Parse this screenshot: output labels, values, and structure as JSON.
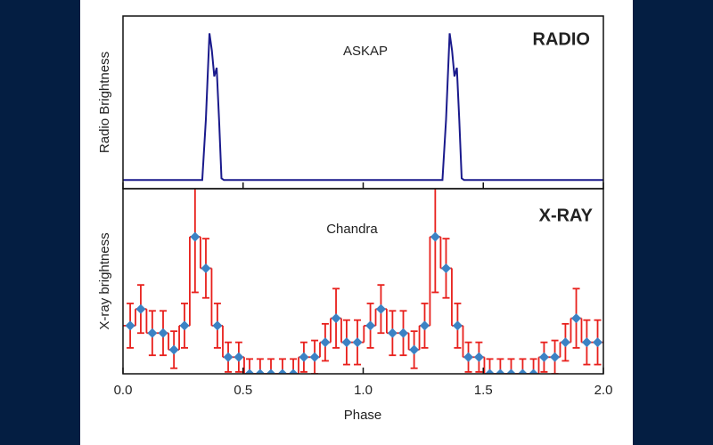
{
  "chart_data": [
    {
      "type": "line",
      "title": "RADIO",
      "annotation": "ASKAP",
      "ylabel": "Radio Brightness",
      "xlim": [
        0,
        2
      ],
      "ylim": [
        0,
        1
      ],
      "color": "#1a1a8c",
      "x": [
        0,
        0.33,
        0.345,
        0.36,
        0.37,
        0.38,
        0.39,
        0.4,
        0.41,
        0.42,
        1.33,
        1.345,
        1.36,
        1.37,
        1.38,
        1.39,
        1.4,
        1.41,
        1.42,
        2.0
      ],
      "values": [
        0.05,
        0.05,
        0.4,
        0.9,
        0.8,
        0.65,
        0.7,
        0.4,
        0.06,
        0.05,
        0.05,
        0.4,
        0.9,
        0.8,
        0.65,
        0.7,
        0.4,
        0.06,
        0.05,
        0.05
      ]
    },
    {
      "type": "errorbar",
      "title": "X-RAY",
      "annotation": "Chandra",
      "ylabel": "X-ray brightness",
      "xlabel": "Phase",
      "xlim": [
        0,
        2
      ],
      "ylim": [
        0,
        1
      ],
      "color": "#e8201c",
      "marker_color": "#3b82c4",
      "xticks": [
        {
          "value": 0,
          "label": "0.0"
        },
        0.5,
        {
          "value": 1,
          "label": "1.0"
        },
        1.5,
        {
          "value": 2,
          "label": "2.0"
        }
      ],
      "x": [
        0.03,
        0.074,
        0.122,
        0.167,
        0.212,
        0.256,
        0.3,
        0.345,
        0.393,
        0.438,
        0.482,
        0.527,
        0.571,
        0.616,
        0.664,
        0.709,
        0.753,
        0.798,
        0.842,
        0.887,
        0.931,
        0.976,
        1.03,
        1.074,
        1.122,
        1.167,
        1.212,
        1.256,
        1.3,
        1.345,
        1.393,
        1.438,
        1.482,
        1.527,
        1.571,
        1.616,
        1.664,
        1.709,
        1.753,
        1.798,
        1.842,
        1.887,
        1.931,
        1.976
      ],
      "values": [
        0.26,
        0.35,
        0.22,
        0.22,
        0.13,
        0.26,
        0.74,
        0.57,
        0.26,
        0.09,
        0.09,
        0,
        0,
        0,
        0,
        0,
        0.09,
        0.09,
        0.17,
        0.3,
        0.17,
        0.17,
        0.26,
        0.35,
        0.22,
        0.22,
        0.13,
        0.26,
        0.74,
        0.57,
        0.26,
        0.09,
        0.09,
        0,
        0,
        0,
        0,
        0,
        0.09,
        0.09,
        0.17,
        0.3,
        0.17,
        0.17
      ],
      "errors": [
        0.12,
        0.13,
        0.12,
        0.12,
        0.1,
        0.12,
        0.3,
        0.16,
        0.12,
        0.08,
        0.08,
        0.08,
        0.08,
        0.08,
        0.08,
        0.08,
        0.08,
        0.09,
        0.1,
        0.16,
        0.12,
        0.12,
        0.12,
        0.13,
        0.12,
        0.12,
        0.1,
        0.12,
        0.3,
        0.16,
        0.12,
        0.08,
        0.08,
        0.08,
        0.08,
        0.08,
        0.08,
        0.08,
        0.08,
        0.09,
        0.1,
        0.16,
        0.12,
        0.12
      ]
    }
  ]
}
